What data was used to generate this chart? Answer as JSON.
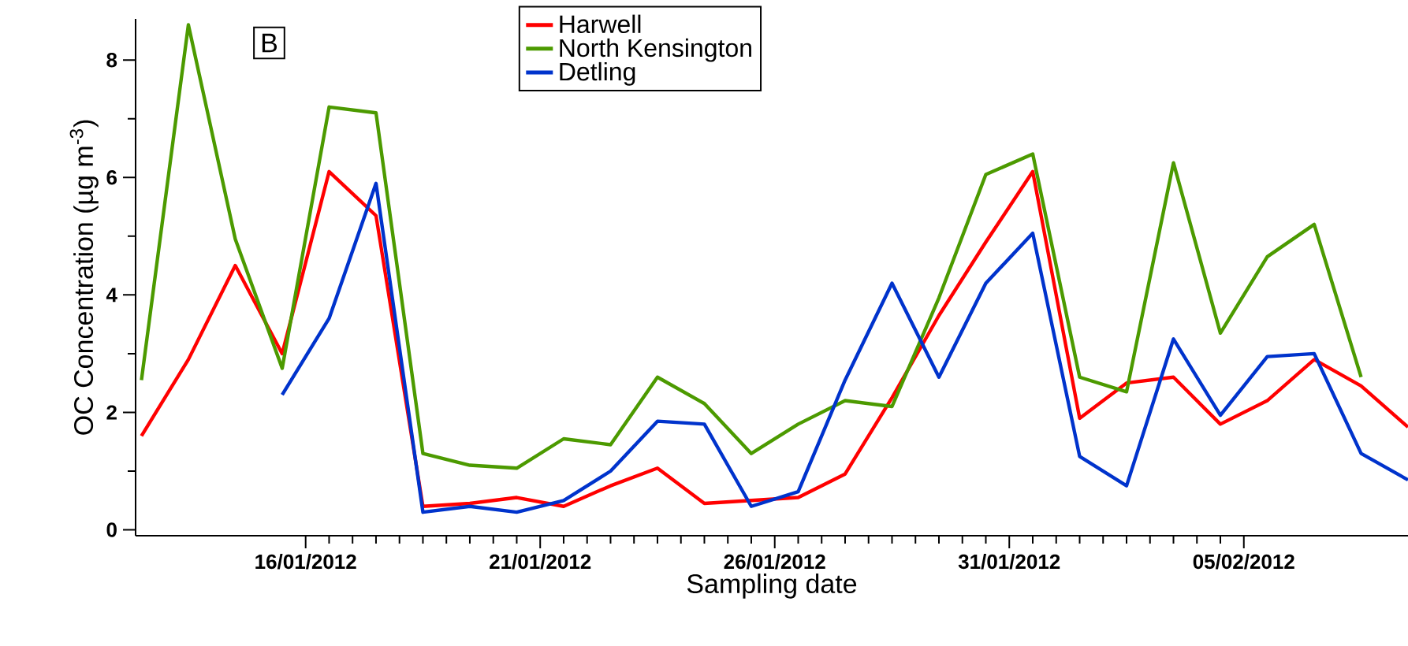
{
  "chart_data": {
    "type": "line",
    "xlabel": "Sampling date",
    "ylabel": "OC Concentration (µg m$^{-3}$)",
    "annotations": [
      "B"
    ],
    "x": [
      "2012-01-12T12:00",
      "2012-01-13T12:00",
      "2012-01-14T12:00",
      "2012-01-15T12:00",
      "2012-01-16T12:00",
      "2012-01-17T12:00",
      "2012-01-18T12:00",
      "2012-01-19T12:00",
      "2012-01-20T12:00",
      "2012-01-21T12:00",
      "2012-01-22T12:00",
      "2012-01-23T12:00",
      "2012-01-24T12:00",
      "2012-01-25T12:00",
      "2012-01-26T12:00",
      "2012-01-27T12:00",
      "2012-01-28T12:00",
      "2012-01-29T12:00",
      "2012-01-30T12:00",
      "2012-01-31T12:00",
      "2012-02-01T12:00",
      "2012-02-02T12:00",
      "2012-02-03T12:00",
      "2012-02-04T12:00",
      "2012-02-05T12:00",
      "2012-02-06T12:00",
      "2012-02-07T12:00",
      "2012-02-08T12:00"
    ],
    "series": [
      {
        "name": "Harwell",
        "color": "#ff0000",
        "values": [
          1.6,
          2.9,
          4.5,
          3.0,
          6.1,
          5.35,
          0.4,
          0.45,
          0.55,
          0.4,
          0.75,
          1.05,
          0.45,
          0.5,
          0.55,
          0.95,
          2.25,
          3.65,
          4.9,
          6.1,
          1.9,
          2.5,
          2.6,
          1.8,
          2.2,
          2.9,
          2.45,
          1.75
        ]
      },
      {
        "name": "North Kensington",
        "color": "#4c9a00",
        "values": [
          2.55,
          8.6,
          4.95,
          2.75,
          7.2,
          7.1,
          1.3,
          1.1,
          1.05,
          1.55,
          1.45,
          2.6,
          2.15,
          1.3,
          1.8,
          2.2,
          2.1,
          3.95,
          6.05,
          6.4,
          2.6,
          2.35,
          6.25,
          3.35,
          4.65,
          5.2,
          2.6,
          null
        ]
      },
      {
        "name": "Detling",
        "color": "#0033cc",
        "values": [
          null,
          null,
          null,
          2.3,
          3.6,
          5.9,
          0.3,
          0.4,
          0.3,
          0.5,
          1.0,
          1.85,
          1.8,
          0.4,
          0.65,
          2.55,
          4.2,
          2.6,
          4.2,
          5.05,
          1.25,
          0.75,
          3.25,
          1.95,
          2.95,
          3.0,
          1.3,
          0.85
        ]
      }
    ],
    "xlim": [
      "2012-01-12T09:00",
      "2012-02-08T12:00"
    ],
    "xticks": [
      {
        "value": "2012-01-16",
        "label": "16/01/2012"
      },
      {
        "value": "2012-01-21",
        "label": "21/01/2012"
      },
      {
        "value": "2012-01-26",
        "label": "26/01/2012"
      },
      {
        "value": "2012-01-31",
        "label": "31/01/2012"
      },
      {
        "value": "2012-02-05",
        "label": "05/02/2012"
      }
    ],
    "ylim": [
      -0.1,
      8.7
    ],
    "yticks": [
      0,
      2,
      4,
      6,
      8
    ],
    "legend": "top",
    "line_style": "solid",
    "marker": "none"
  }
}
